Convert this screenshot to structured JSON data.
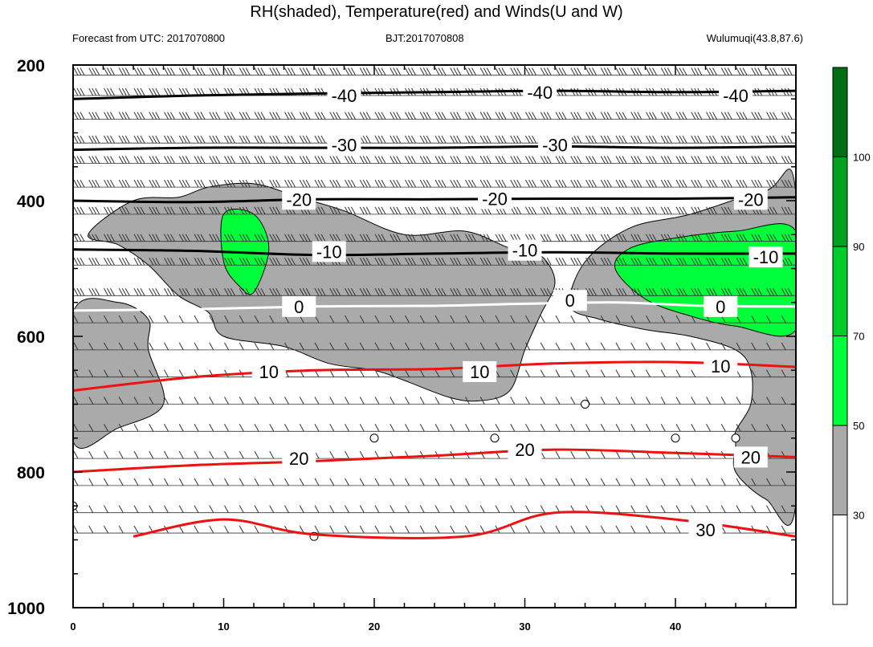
{
  "title": "RH(shaded), Temperature(red) and Winds(U and W)",
  "subtitle_left": "Forecast from UTC: 2017070800",
  "subtitle_center": "BJT:2017070808",
  "subtitle_right": "Wulumuqi(43.8,87.6)",
  "colors": {
    "rh_30_50": "#aaaaaa",
    "rh_50_70": "#00ff3a",
    "rh_70_90": "#00cc2a",
    "rh_90_100": "#00a020",
    "rh_100": "#006e14",
    "temp_positive": "#ee1111",
    "temp_zero": "#ffffff",
    "temp_negative": "#000000"
  },
  "chart_data": {
    "type": "contour",
    "x_axis": {
      "range": [
        0,
        48
      ],
      "ticks": [
        0,
        10,
        20,
        30,
        40
      ],
      "tick_labels": [
        "0",
        "10",
        "20",
        "30",
        "40"
      ]
    },
    "y_axis": {
      "range": [
        200,
        1000
      ],
      "inverted": true,
      "ticks": [
        200,
        400,
        600,
        800,
        1000
      ],
      "tick_labels": [
        "200",
        "400",
        "600",
        "800",
        "1000"
      ]
    },
    "colorbar": {
      "levels": [
        30,
        50,
        70,
        90,
        100
      ],
      "labels": [
        "30",
        "50",
        "70",
        "90",
        "100"
      ]
    },
    "temperature_contours": [
      {
        "level": -40,
        "label": "-40",
        "points": [
          [
            0,
            250
          ],
          [
            8,
            245
          ],
          [
            16,
            242
          ],
          [
            24,
            240
          ],
          [
            32,
            238
          ],
          [
            40,
            240
          ],
          [
            48,
            238
          ]
        ],
        "label_at": [
          [
            18,
            245
          ],
          [
            31,
            240
          ],
          [
            44,
            245
          ]
        ]
      },
      {
        "level": -30,
        "label": "-30",
        "points": [
          [
            0,
            325
          ],
          [
            8,
            322
          ],
          [
            16,
            322
          ],
          [
            24,
            322
          ],
          [
            32,
            320
          ],
          [
            40,
            322
          ],
          [
            48,
            320
          ]
        ],
        "label_at": [
          [
            18,
            318
          ],
          [
            32,
            318
          ]
        ]
      },
      {
        "level": -20,
        "label": "-20",
        "points": [
          [
            0,
            400
          ],
          [
            8,
            402
          ],
          [
            16,
            398
          ],
          [
            24,
            398
          ],
          [
            32,
            397
          ],
          [
            40,
            397
          ],
          [
            48,
            395
          ]
        ],
        "label_at": [
          [
            15,
            398
          ],
          [
            28,
            397
          ],
          [
            45,
            398
          ]
        ]
      },
      {
        "level": -10,
        "label": "-10",
        "points": [
          [
            0,
            472
          ],
          [
            8,
            474
          ],
          [
            16,
            480
          ],
          [
            24,
            478
          ],
          [
            32,
            476
          ],
          [
            40,
            478
          ],
          [
            48,
            478
          ]
        ],
        "label_at": [
          [
            17,
            475
          ],
          [
            30,
            473
          ],
          [
            46,
            483
          ]
        ]
      },
      {
        "level": 0,
        "label": "0",
        "points": [
          [
            0,
            562
          ],
          [
            8,
            560
          ],
          [
            16,
            556
          ],
          [
            24,
            555
          ],
          [
            30,
            552
          ],
          [
            36,
            550
          ],
          [
            42,
            555
          ],
          [
            48,
            556
          ]
        ],
        "label_at": [
          [
            15,
            556
          ],
          [
            33,
            547
          ],
          [
            43,
            556
          ]
        ]
      },
      {
        "level": 10,
        "label": "10",
        "points": [
          [
            0,
            680
          ],
          [
            8,
            660
          ],
          [
            16,
            650
          ],
          [
            24,
            648
          ],
          [
            32,
            640
          ],
          [
            40,
            638
          ],
          [
            48,
            645
          ]
        ],
        "label_at": [
          [
            13,
            652
          ],
          [
            27,
            652
          ],
          [
            43,
            644
          ]
        ]
      },
      {
        "level": 20,
        "label": "20",
        "points": [
          [
            0,
            800
          ],
          [
            8,
            790
          ],
          [
            16,
            784
          ],
          [
            24,
            776
          ],
          [
            32,
            767
          ],
          [
            40,
            772
          ],
          [
            48,
            778
          ]
        ],
        "label_at": [
          [
            15,
            780
          ],
          [
            30,
            767
          ],
          [
            45,
            778
          ]
        ]
      },
      {
        "level": 30,
        "label": "30",
        "points": [
          [
            4,
            895
          ],
          [
            10,
            870
          ],
          [
            16,
            892
          ],
          [
            26,
            895
          ],
          [
            32,
            860
          ],
          [
            40,
            870
          ],
          [
            48,
            895
          ]
        ],
        "label_at": [
          [
            42,
            885
          ]
        ]
      }
    ],
    "rh_regions": [
      {
        "level": "30-50",
        "points": [
          [
            1,
            450
          ],
          [
            4,
            400
          ],
          [
            7,
            395
          ],
          [
            9,
            380
          ],
          [
            12,
            375
          ],
          [
            15,
            395
          ],
          [
            18,
            415
          ],
          [
            22,
            450
          ],
          [
            26,
            445
          ],
          [
            29,
            470
          ],
          [
            31,
            480
          ],
          [
            32,
            520
          ],
          [
            31,
            570
          ],
          [
            30,
            620
          ],
          [
            29,
            680
          ],
          [
            27,
            695
          ],
          [
            25,
            690
          ],
          [
            22,
            665
          ],
          [
            20,
            650
          ],
          [
            17,
            640
          ],
          [
            14,
            615
          ],
          [
            10,
            600
          ],
          [
            9,
            565
          ],
          [
            7,
            540
          ],
          [
            5,
            495
          ],
          [
            3,
            465
          ]
        ]
      },
      {
        "level": "30-50",
        "points": [
          [
            0,
            565
          ],
          [
            3,
            550
          ],
          [
            5,
            575
          ],
          [
            5,
            620
          ],
          [
            6,
            700
          ],
          [
            3,
            735
          ],
          [
            0,
            755
          ]
        ]
      },
      {
        "level": "30-50",
        "points": [
          [
            33,
            555
          ],
          [
            34,
            490
          ],
          [
            37,
            440
          ],
          [
            41,
            420
          ],
          [
            46,
            385
          ],
          [
            48,
            390
          ],
          [
            48,
            845
          ],
          [
            46,
            840
          ],
          [
            44,
            800
          ],
          [
            44,
            760
          ],
          [
            44,
            740
          ],
          [
            45,
            700
          ],
          [
            45,
            650
          ],
          [
            44,
            620
          ],
          [
            41,
            600
          ],
          [
            38,
            590
          ],
          [
            35,
            575
          ]
        ]
      },
      {
        "level": "50-70",
        "points": [
          [
            10,
            420
          ],
          [
            12,
            420
          ],
          [
            13,
            470
          ],
          [
            12,
            535
          ],
          [
            11,
            525
          ],
          [
            10,
            490
          ]
        ]
      },
      {
        "level": "50-70",
        "points": [
          [
            36,
            500
          ],
          [
            37,
            470
          ],
          [
            40,
            455
          ],
          [
            44,
            445
          ],
          [
            48,
            445
          ],
          [
            48,
            590
          ],
          [
            44,
            585
          ],
          [
            41,
            570
          ],
          [
            38,
            545
          ]
        ]
      }
    ]
  }
}
